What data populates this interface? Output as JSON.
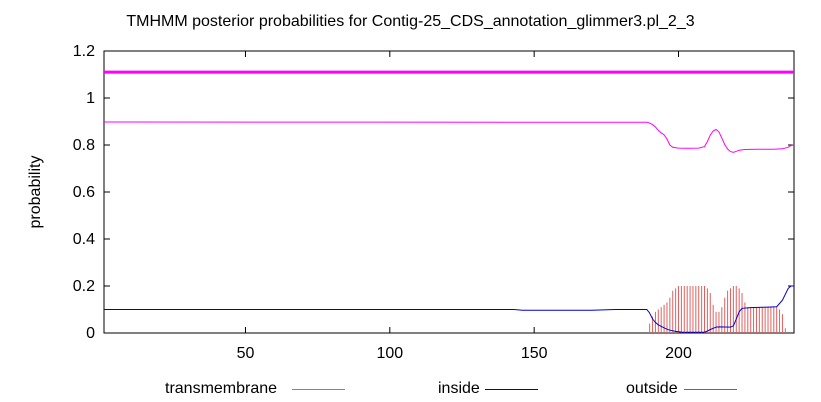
{
  "chart_data": {
    "type": "line",
    "title": "TMHMM posterior probabilities for Contig-25_CDS_annotation_glimmer3.pl_2_3",
    "xlabel": "",
    "ylabel": "probability",
    "xlim": [
      1,
      240
    ],
    "ylim": [
      0,
      1.2
    ],
    "x_ticks": [
      50,
      100,
      150,
      200
    ],
    "y_ticks": [
      0,
      0.2,
      0.4,
      0.6,
      0.8,
      1,
      1.2
    ],
    "y_tick_labels": [
      "0",
      "0.2",
      "0.4",
      "0.6",
      "0.8",
      "1",
      "1.2"
    ],
    "x_tick_labels": [
      "50",
      "100",
      "150",
      "200"
    ],
    "grid": false,
    "legend_position": "bottom",
    "reference_line": {
      "y": 1.11,
      "color": "#ff00ff"
    },
    "series": [
      {
        "name": "transmembrane",
        "color": "#e06060",
        "style": "impulses",
        "points": [
          [
            190,
            0.04
          ],
          [
            191,
            0.07
          ],
          [
            192,
            0.09
          ],
          [
            193,
            0.1
          ],
          [
            194,
            0.11
          ],
          [
            195,
            0.12
          ],
          [
            196,
            0.13
          ],
          [
            197,
            0.15
          ],
          [
            198,
            0.18
          ],
          [
            199,
            0.19
          ],
          [
            200,
            0.2
          ],
          [
            201,
            0.2
          ],
          [
            202,
            0.2
          ],
          [
            203,
            0.2
          ],
          [
            204,
            0.2
          ],
          [
            205,
            0.2
          ],
          [
            206,
            0.2
          ],
          [
            207,
            0.2
          ],
          [
            208,
            0.2
          ],
          [
            209,
            0.2
          ],
          [
            210,
            0.19
          ],
          [
            211,
            0.17
          ],
          [
            212,
            0.12
          ],
          [
            213,
            0.09
          ],
          [
            214,
            0.09
          ],
          [
            215,
            0.11
          ],
          [
            216,
            0.15
          ],
          [
            217,
            0.18
          ],
          [
            218,
            0.19
          ],
          [
            219,
            0.2
          ],
          [
            220,
            0.2
          ],
          [
            221,
            0.19
          ],
          [
            222,
            0.17
          ],
          [
            223,
            0.13
          ],
          [
            224,
            0.11
          ],
          [
            225,
            0.11
          ],
          [
            226,
            0.11
          ],
          [
            227,
            0.11
          ],
          [
            228,
            0.11
          ],
          [
            229,
            0.11
          ],
          [
            230,
            0.11
          ],
          [
            231,
            0.11
          ],
          [
            232,
            0.11
          ],
          [
            233,
            0.11
          ],
          [
            234,
            0.11
          ],
          [
            235,
            0.1
          ],
          [
            236,
            0.08
          ],
          [
            237,
            0.02
          ]
        ]
      },
      {
        "name": "inside",
        "color": "#0000cc",
        "style": "line",
        "points": [
          [
            1,
            0.1
          ],
          [
            143,
            0.1
          ],
          [
            146,
            0.097
          ],
          [
            170,
            0.097
          ],
          [
            178,
            0.1
          ],
          [
            189,
            0.1
          ],
          [
            190,
            0.085
          ],
          [
            191,
            0.06
          ],
          [
            192,
            0.045
          ],
          [
            193,
            0.035
          ],
          [
            194,
            0.028
          ],
          [
            195,
            0.022
          ],
          [
            196,
            0.016
          ],
          [
            197,
            0.012
          ],
          [
            199,
            0.007
          ],
          [
            201,
            0.004
          ],
          [
            205,
            0.003
          ],
          [
            209,
            0.004
          ],
          [
            210,
            0.008
          ],
          [
            211,
            0.015
          ],
          [
            212,
            0.02
          ],
          [
            213,
            0.025
          ],
          [
            214,
            0.026
          ],
          [
            218,
            0.025
          ],
          [
            219,
            0.03
          ],
          [
            220,
            0.06
          ],
          [
            221,
            0.09
          ],
          [
            222,
            0.105
          ],
          [
            225,
            0.108
          ],
          [
            231,
            0.11
          ],
          [
            234,
            0.112
          ],
          [
            236,
            0.14
          ],
          [
            238,
            0.19
          ],
          [
            239,
            0.2
          ],
          [
            240,
            0.2
          ]
        ]
      },
      {
        "name": "outside",
        "color": "#ff00ff",
        "style": "line",
        "points": [
          [
            1,
            0.898
          ],
          [
            150,
            0.897
          ],
          [
            160,
            0.897
          ],
          [
            189,
            0.897
          ],
          [
            190,
            0.893
          ],
          [
            191,
            0.887
          ],
          [
            192,
            0.877
          ],
          [
            193,
            0.862
          ],
          [
            194,
            0.852
          ],
          [
            195,
            0.843
          ],
          [
            196,
            0.825
          ],
          [
            197,
            0.8
          ],
          [
            198,
            0.79
          ],
          [
            200,
            0.787
          ],
          [
            203,
            0.786
          ],
          [
            207,
            0.787
          ],
          [
            209,
            0.793
          ],
          [
            210,
            0.815
          ],
          [
            211,
            0.842
          ],
          [
            212,
            0.86
          ],
          [
            213,
            0.866
          ],
          [
            214,
            0.856
          ],
          [
            215,
            0.83
          ],
          [
            216,
            0.802
          ],
          [
            217,
            0.783
          ],
          [
            218,
            0.772
          ],
          [
            219,
            0.769
          ],
          [
            220,
            0.773
          ],
          [
            221,
            0.778
          ],
          [
            223,
            0.781
          ],
          [
            227,
            0.782
          ],
          [
            233,
            0.782
          ],
          [
            236,
            0.784
          ],
          [
            238,
            0.79
          ],
          [
            239,
            0.798
          ],
          [
            240,
            0.8
          ]
        ]
      }
    ]
  }
}
